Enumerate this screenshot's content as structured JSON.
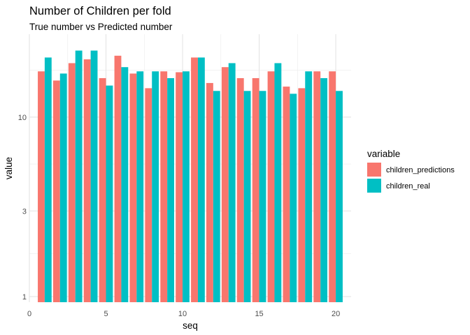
{
  "chart_data": {
    "type": "bar",
    "title": "Number of Children per fold",
    "subtitle": "True number  vs Predicted number",
    "xlabel": "seq",
    "ylabel": "value",
    "y_scale": "log10",
    "x_ticks": [
      0,
      5,
      10,
      15,
      20
    ],
    "y_ticks": [
      1,
      3,
      10
    ],
    "xlim": [
      0,
      21
    ],
    "ylim": [
      0.93,
      29
    ],
    "grid": true,
    "legend": {
      "title": "variable",
      "position": "right"
    },
    "x": [
      1,
      2,
      3,
      4,
      5,
      6,
      7,
      8,
      9,
      10,
      11,
      12,
      13,
      14,
      15,
      16,
      17,
      18,
      19,
      20
    ],
    "series": [
      {
        "name": "children_predictions",
        "color": "#F8766D",
        "values": [
          18,
          16,
          20,
          21,
          16.5,
          22,
          17.5,
          14.5,
          18,
          17.8,
          21.5,
          15.5,
          19,
          16.5,
          16.5,
          18,
          14.8,
          14.5,
          18,
          18
        ]
      },
      {
        "name": "children_real",
        "color": "#00BFC4",
        "values": [
          21.5,
          17.5,
          23.5,
          23.5,
          15,
          19,
          18,
          18,
          16.5,
          18,
          21.5,
          14,
          20,
          14,
          14,
          20,
          13.5,
          18,
          16.5,
          14
        ]
      }
    ]
  }
}
